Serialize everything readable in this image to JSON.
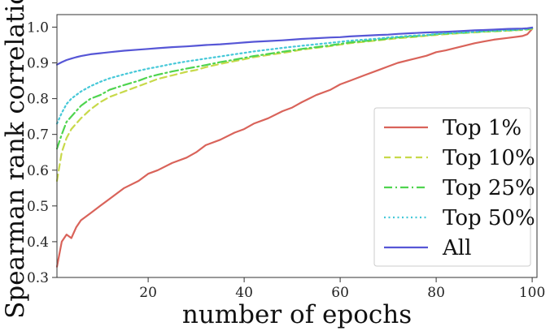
{
  "chart_data": {
    "type": "line",
    "xlabel": "number of epochs",
    "ylabel": "Spearman rank correlation",
    "xlim": [
      1,
      101
    ],
    "ylim": [
      0.3,
      1.035
    ],
    "x_ticks": [
      20,
      40,
      60,
      80,
      100
    ],
    "y_ticks": [
      0.3,
      0.4,
      0.5,
      0.6,
      0.7,
      0.8,
      0.9,
      1.0
    ],
    "x_tick_labels": [
      "20",
      "40",
      "60",
      "80",
      "100"
    ],
    "y_tick_labels": [
      "0.3",
      "0.4",
      "0.5",
      "0.6",
      "0.7",
      "0.8",
      "0.9",
      "1.0"
    ],
    "grid": false,
    "legend_position": "lower-right",
    "x": [
      1,
      2,
      3,
      4,
      5,
      6,
      8,
      10,
      12,
      15,
      18,
      20,
      22,
      25,
      28,
      30,
      32,
      35,
      38,
      40,
      42,
      45,
      48,
      50,
      52,
      55,
      58,
      60,
      62,
      65,
      68,
      70,
      72,
      75,
      78,
      80,
      82,
      85,
      88,
      90,
      92,
      95,
      98,
      99,
      100
    ],
    "series": [
      {
        "name": "Top 1%",
        "color": "#d9635a",
        "dash": "solid",
        "values": [
          0.33,
          0.4,
          0.42,
          0.41,
          0.44,
          0.46,
          0.48,
          0.5,
          0.52,
          0.55,
          0.57,
          0.59,
          0.6,
          0.62,
          0.635,
          0.65,
          0.67,
          0.685,
          0.705,
          0.715,
          0.73,
          0.745,
          0.765,
          0.775,
          0.79,
          0.81,
          0.825,
          0.84,
          0.85,
          0.865,
          0.88,
          0.89,
          0.9,
          0.91,
          0.92,
          0.93,
          0.935,
          0.945,
          0.955,
          0.96,
          0.965,
          0.97,
          0.975,
          0.98,
          0.995
        ]
      },
      {
        "name": "Top 10%",
        "color": "#c8d94a",
        "dash": "dashed",
        "values": [
          0.57,
          0.65,
          0.69,
          0.715,
          0.73,
          0.745,
          0.77,
          0.79,
          0.805,
          0.82,
          0.835,
          0.845,
          0.855,
          0.865,
          0.875,
          0.88,
          0.888,
          0.897,
          0.905,
          0.91,
          0.916,
          0.922,
          0.928,
          0.932,
          0.937,
          0.942,
          0.947,
          0.951,
          0.955,
          0.959,
          0.963,
          0.966,
          0.969,
          0.972,
          0.976,
          0.978,
          0.98,
          0.983,
          0.985,
          0.987,
          0.988,
          0.99,
          0.992,
          0.993,
          0.995
        ]
      },
      {
        "name": "Top 25%",
        "color": "#4fd44f",
        "dash": "dashdot",
        "values": [
          0.66,
          0.7,
          0.735,
          0.75,
          0.765,
          0.78,
          0.8,
          0.81,
          0.825,
          0.838,
          0.85,
          0.86,
          0.867,
          0.876,
          0.884,
          0.889,
          0.894,
          0.902,
          0.909,
          0.914,
          0.919,
          0.925,
          0.931,
          0.935,
          0.939,
          0.944,
          0.949,
          0.953,
          0.957,
          0.961,
          0.965,
          0.968,
          0.971,
          0.974,
          0.977,
          0.98,
          0.982,
          0.984,
          0.986,
          0.988,
          0.989,
          0.991,
          0.993,
          0.994,
          0.997
        ]
      },
      {
        "name": "Top 50%",
        "color": "#45c8d8",
        "dash": "dotted",
        "values": [
          0.73,
          0.76,
          0.785,
          0.8,
          0.81,
          0.82,
          0.835,
          0.847,
          0.857,
          0.868,
          0.878,
          0.884,
          0.889,
          0.897,
          0.904,
          0.908,
          0.912,
          0.918,
          0.924,
          0.928,
          0.932,
          0.937,
          0.942,
          0.945,
          0.948,
          0.952,
          0.956,
          0.959,
          0.962,
          0.965,
          0.968,
          0.971,
          0.973,
          0.976,
          0.978,
          0.981,
          0.983,
          0.985,
          0.987,
          0.989,
          0.99,
          0.992,
          0.994,
          0.995,
          0.998
        ]
      },
      {
        "name": "All",
        "color": "#5656d6",
        "dash": "solid",
        "values": [
          0.895,
          0.902,
          0.908,
          0.912,
          0.916,
          0.919,
          0.924,
          0.927,
          0.93,
          0.934,
          0.937,
          0.939,
          0.941,
          0.944,
          0.946,
          0.948,
          0.95,
          0.952,
          0.955,
          0.957,
          0.959,
          0.961,
          0.963,
          0.965,
          0.967,
          0.969,
          0.971,
          0.972,
          0.974,
          0.976,
          0.978,
          0.979,
          0.981,
          0.983,
          0.985,
          0.986,
          0.987,
          0.989,
          0.991,
          0.992,
          0.993,
          0.995,
          0.996,
          0.997,
          0.999
        ]
      }
    ]
  }
}
